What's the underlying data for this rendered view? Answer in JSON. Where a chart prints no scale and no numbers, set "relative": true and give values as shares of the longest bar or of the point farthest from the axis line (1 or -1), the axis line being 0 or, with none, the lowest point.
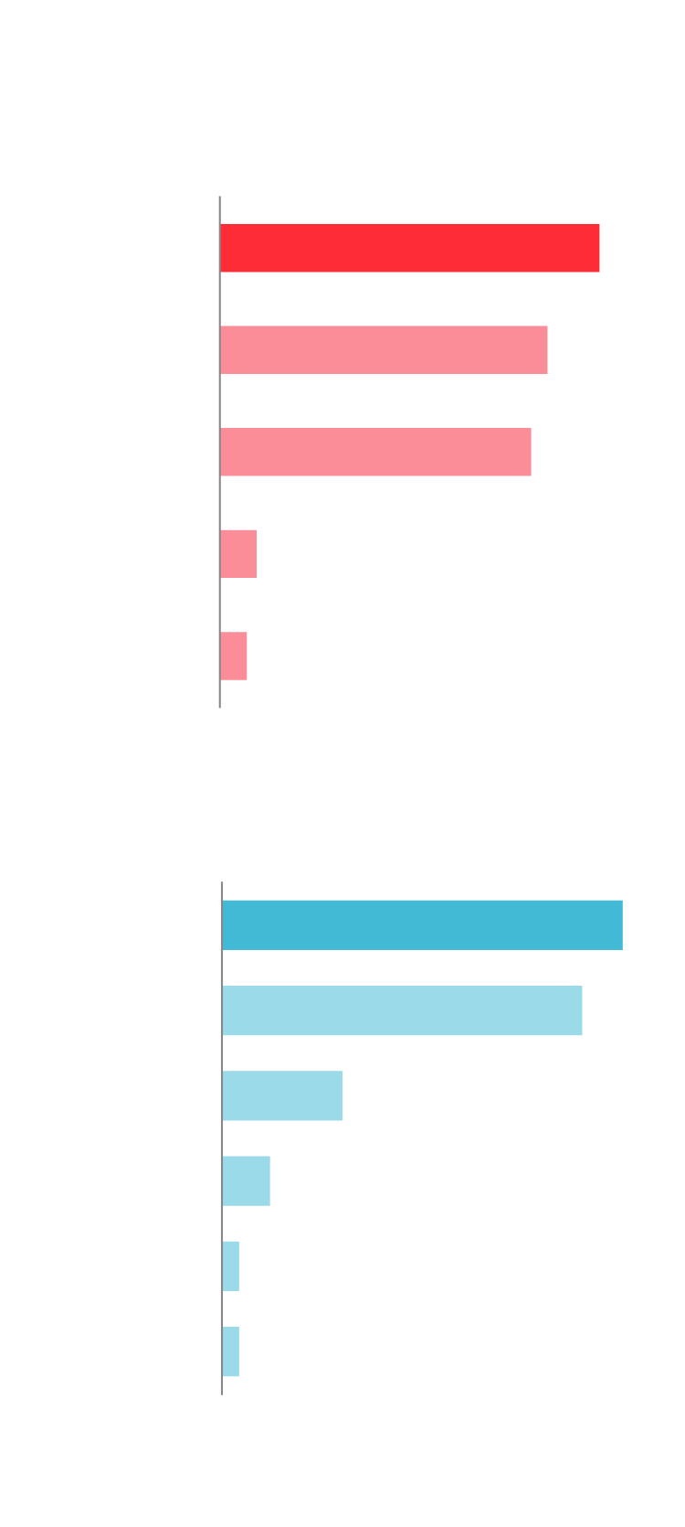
{
  "chart_data": [
    {
      "type": "bar",
      "orientation": "horizontal",
      "relative": true,
      "categories": [
        null,
        null,
        null,
        null,
        null
      ],
      "values": [
        1,
        0.863,
        0.82,
        0.097,
        0.071
      ],
      "colors": [
        "#fe2c37",
        "#fb8d98",
        "#fb8d98",
        "#fb8d98",
        "#fb8d98"
      ]
    },
    {
      "type": "bar",
      "orientation": "horizontal",
      "relative": true,
      "categories": [
        null,
        null,
        null,
        null,
        null,
        null
      ],
      "values": [
        1,
        0.899,
        0.301,
        0.12,
        0.043,
        0.043
      ],
      "colors": [
        "#42b9d5",
        "#9bdae8",
        "#9bdae8",
        "#9bdae8",
        "#9bdae8",
        "#9bdae8"
      ]
    }
  ]
}
